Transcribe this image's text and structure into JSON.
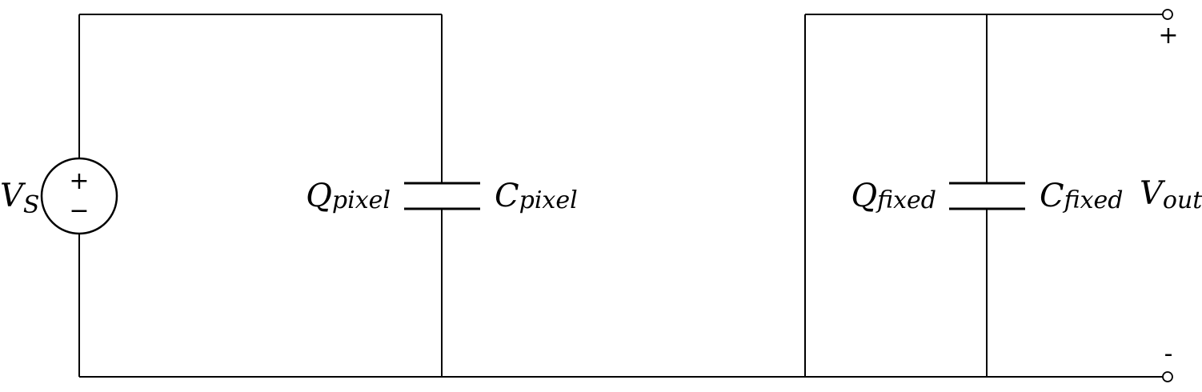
{
  "source": {
    "symbol": "V",
    "subscript": "S",
    "plus": "+",
    "minus": "−"
  },
  "capacitor_pixel": {
    "charge_symbol": "Q",
    "charge_subscript": "pixel",
    "cap_symbol": "C",
    "cap_subscript": "pixel"
  },
  "capacitor_fixed": {
    "charge_symbol": "Q",
    "charge_subscript": "fixed",
    "cap_symbol": "C",
    "cap_subscript": "fixed"
  },
  "output": {
    "symbol": "V",
    "subscript": "out",
    "plus": "+",
    "minus": "-"
  }
}
